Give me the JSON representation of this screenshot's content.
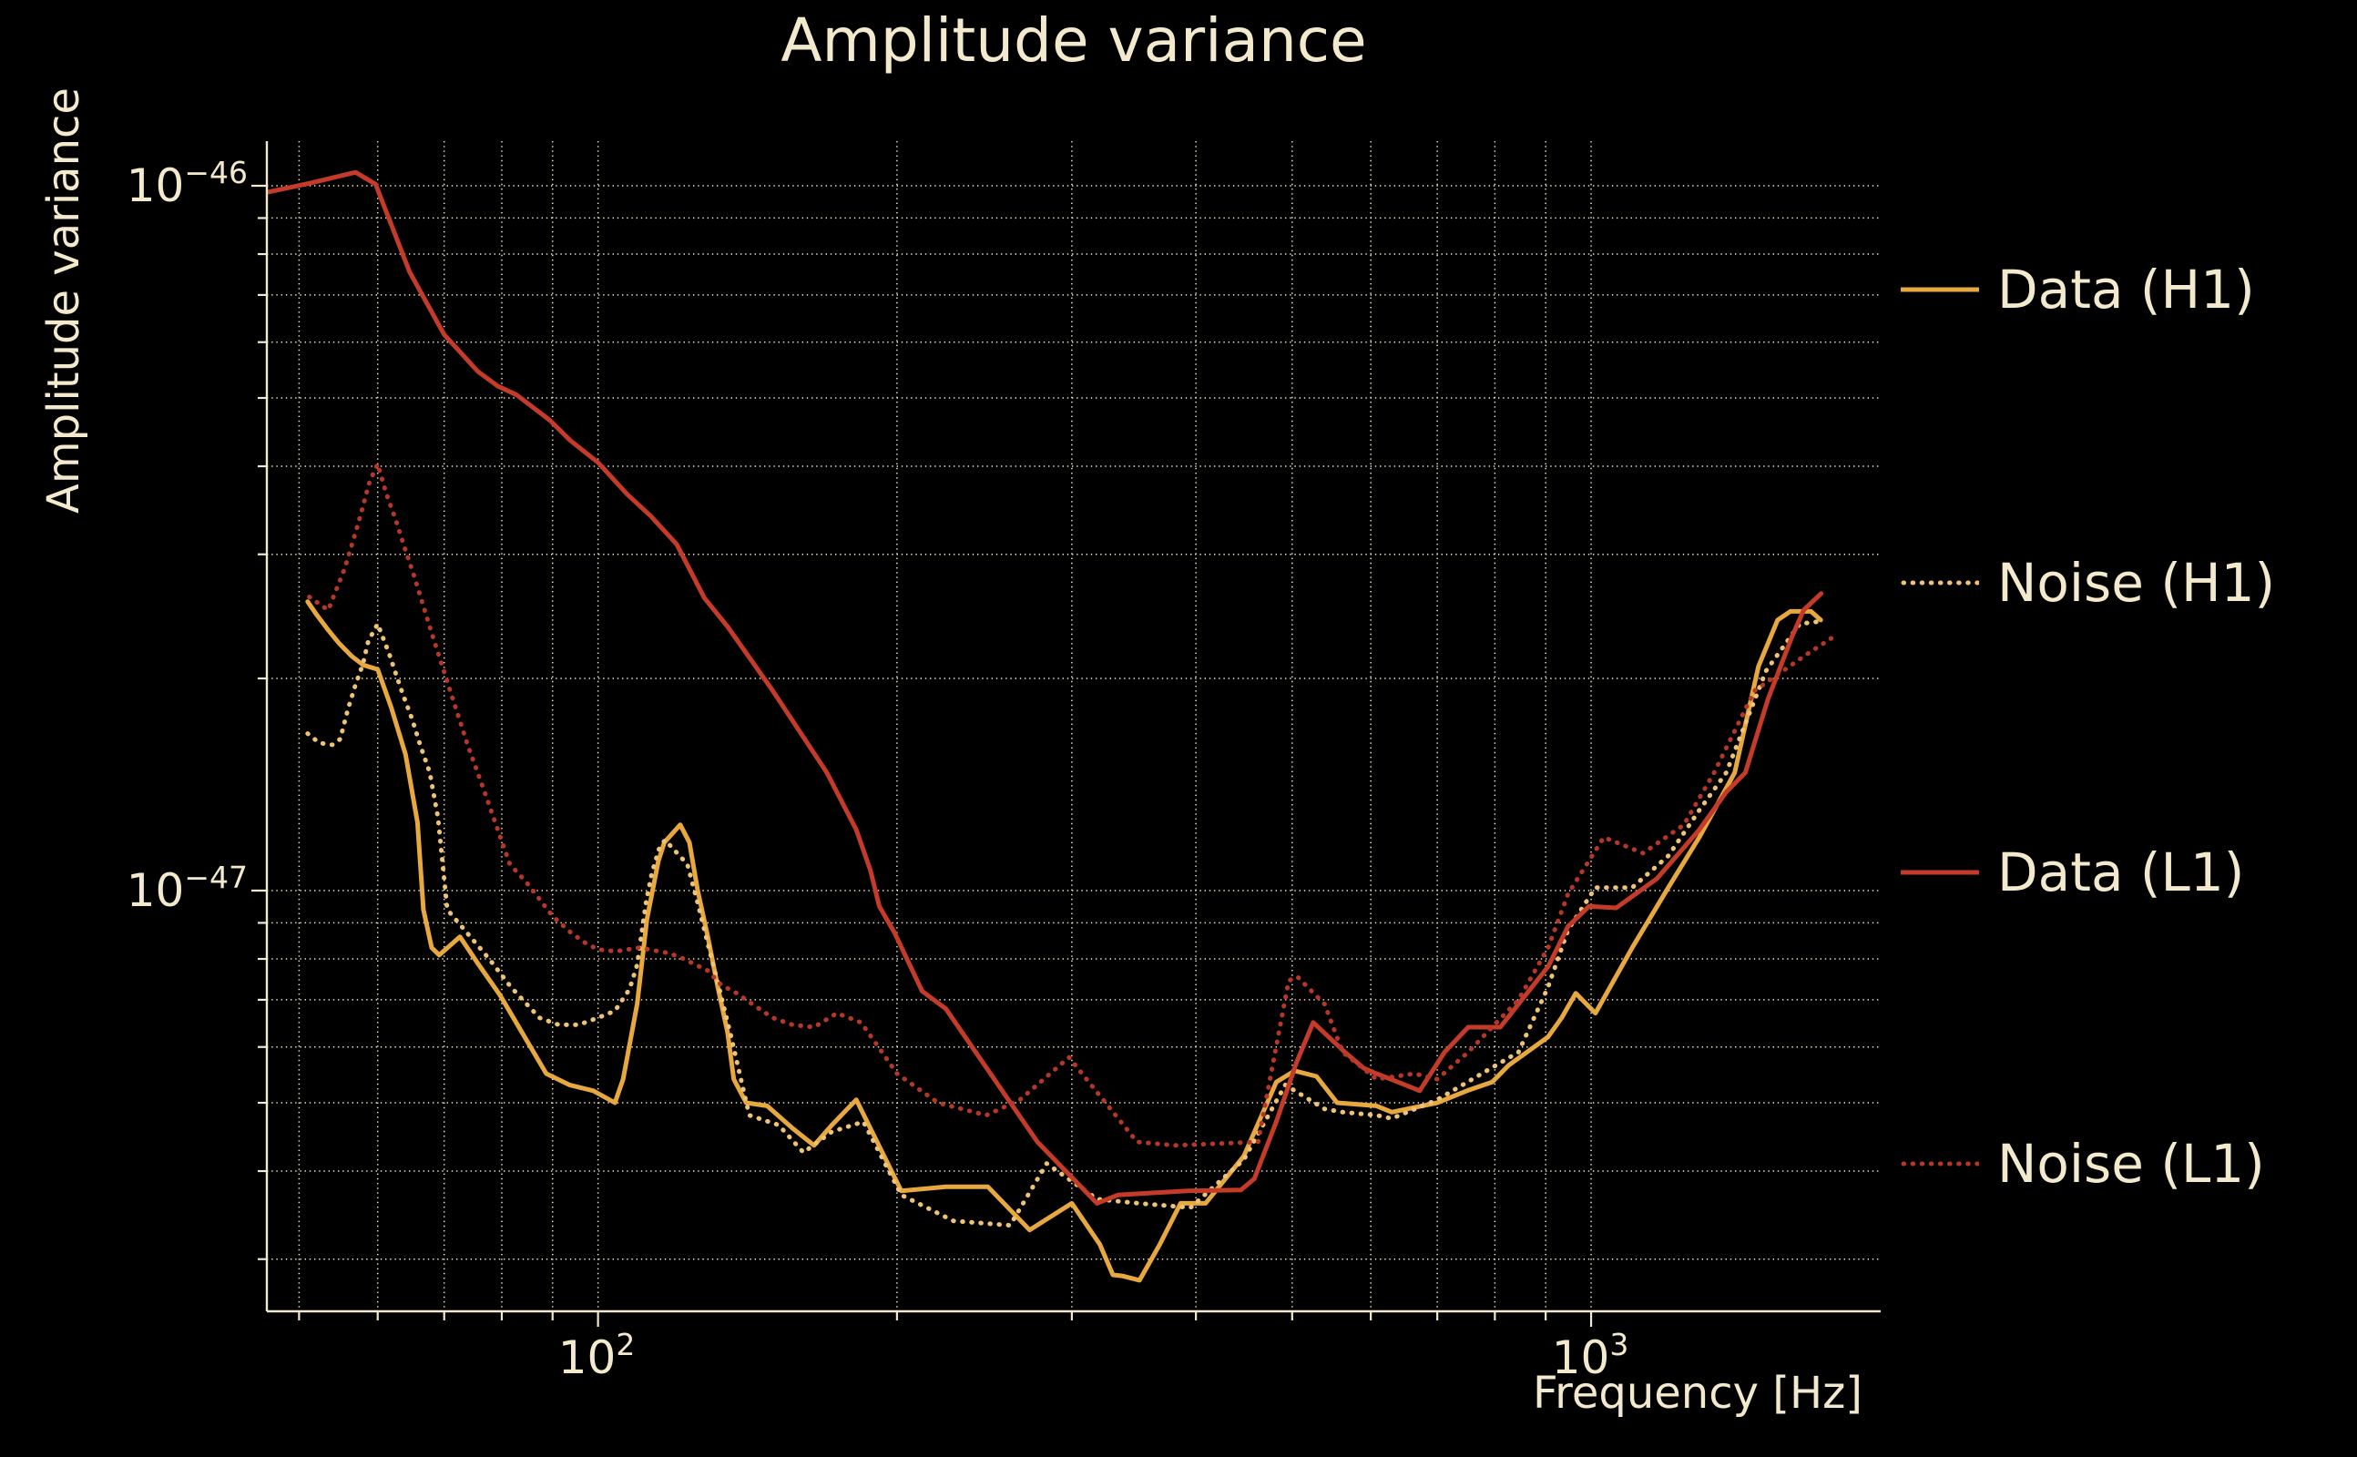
{
  "title": "Amplitude variance",
  "axes": {
    "xlabel": "Frequency [Hz]",
    "ylabel": "Amplitude variance",
    "xscale": "log",
    "yscale": "log",
    "grid": true,
    "xlim": [
      46.4,
      1957
    ],
    "ylim": [
      2.53e-48,
      1.157e-46
    ],
    "x_ticks": [
      {
        "base": "10",
        "exp": "2",
        "value": 100
      },
      {
        "base": "10",
        "exp": "3",
        "value": 1000
      }
    ],
    "y_ticks": [
      {
        "base": "10",
        "exp": "−46",
        "value": 1e-46
      },
      {
        "base": "10",
        "exp": "−47",
        "value": 1e-47
      }
    ]
  },
  "legend": [
    {
      "label": "Data (H1)",
      "color": "#e6a83f",
      "style": "solid"
    },
    {
      "label": "Noise (H1)",
      "color": "#eec377",
      "style": "dotted"
    },
    {
      "label": "Data (L1)",
      "color": "#c43b2a",
      "style": "solid"
    },
    {
      "label": "Noise (L1)",
      "color": "#b53728",
      "style": "dotted"
    }
  ],
  "chart_data": {
    "type": "line",
    "title": "Amplitude variance",
    "xlabel": "Frequency [Hz]",
    "ylabel": "Amplitude variance",
    "x_units": "Hz",
    "legend_position": "right",
    "series": [
      {
        "name": "Data (H1)",
        "color": "#e6a83f",
        "style": "solid",
        "points": [
          [
            51,
            2.57e-47
          ],
          [
            52,
            2.47e-47
          ],
          [
            53.4,
            2.35e-47
          ],
          [
            54.9,
            2.24e-47
          ],
          [
            56.5,
            2.15e-47
          ],
          [
            58,
            2.09e-47
          ],
          [
            60,
            2.06e-47
          ],
          [
            61.9,
            1.82e-47
          ],
          [
            64,
            1.56e-47
          ],
          [
            65.8,
            1.25e-47
          ],
          [
            66.7,
            9.4e-48
          ],
          [
            68,
            8.3e-48
          ],
          [
            69.2,
            8.1e-48
          ],
          [
            72.6,
            8.6e-48
          ],
          [
            75.6,
            7.9e-48
          ],
          [
            79.7,
            7.1e-48
          ],
          [
            83.8,
            6.3e-48
          ],
          [
            88.7,
            5.5e-48
          ],
          [
            93.6,
            5.3e-48
          ],
          [
            98.9,
            5.2e-48
          ],
          [
            104,
            5e-48
          ],
          [
            106,
            5.4e-48
          ],
          [
            109.5,
            6.9e-48
          ],
          [
            112,
            9.1e-48
          ],
          [
            115,
            1.1e-47
          ],
          [
            116.6,
            1.17e-47
          ],
          [
            121,
            1.24e-47
          ],
          [
            123.6,
            1.17e-47
          ],
          [
            126,
            1e-47
          ],
          [
            129,
            8.6e-48
          ],
          [
            132,
            7.3e-48
          ],
          [
            135,
            6.3e-48
          ],
          [
            137,
            5.4e-48
          ],
          [
            141,
            5e-48
          ],
          [
            148,
            4.95e-48
          ],
          [
            157,
            4.6e-48
          ],
          [
            165,
            4.35e-48
          ],
          [
            172,
            4.65e-48
          ],
          [
            182,
            5.05e-48
          ],
          [
            202,
            3.75e-48
          ],
          [
            224,
            3.8e-48
          ],
          [
            247,
            3.8e-48
          ],
          [
            272,
            3.3e-48
          ],
          [
            300,
            3.6e-48
          ],
          [
            320,
            3.15e-48
          ],
          [
            330,
            2.85e-48
          ],
          [
            337,
            2.84e-48
          ],
          [
            351,
            2.8e-48
          ],
          [
            368,
            3.15e-48
          ],
          [
            386,
            3.6e-48
          ],
          [
            409,
            3.6e-48
          ],
          [
            447,
            4.2e-48
          ],
          [
            482,
            5.35e-48
          ],
          [
            503,
            5.55e-48
          ],
          [
            529,
            5.45e-48
          ],
          [
            555,
            5e-48
          ],
          [
            608,
            4.95e-48
          ],
          [
            630,
            4.85e-48
          ],
          [
            700,
            5e-48
          ],
          [
            750,
            5.2e-48
          ],
          [
            795,
            5.35e-48
          ],
          [
            826,
            5.65e-48
          ],
          [
            905,
            6.2e-48
          ],
          [
            934,
            6.6e-48
          ],
          [
            965,
            7.15e-48
          ],
          [
            1010,
            6.7e-48
          ],
          [
            1100,
            8.3e-48
          ],
          [
            1196,
            1.01e-47
          ],
          [
            1285,
            1.19e-47
          ],
          [
            1395,
            1.47e-47
          ],
          [
            1474,
            2.08e-47
          ],
          [
            1541,
            2.42e-47
          ],
          [
            1587,
            2.49e-47
          ],
          [
            1665,
            2.49e-47
          ],
          [
            1703,
            2.42e-47
          ]
        ]
      },
      {
        "name": "Noise (H1)",
        "color": "#eec377",
        "style": "dotted",
        "points": [
          [
            51,
            1.67e-47
          ],
          [
            52.4,
            1.62e-47
          ],
          [
            54,
            1.61e-47
          ],
          [
            55,
            1.64e-47
          ],
          [
            56,
            1.81e-47
          ],
          [
            57,
            1.96e-47
          ],
          [
            58,
            2.1e-47
          ],
          [
            58.7,
            2.26e-47
          ],
          [
            60,
            2.39e-47
          ],
          [
            60.7,
            2.29e-47
          ],
          [
            61.6,
            2.17e-47
          ],
          [
            62.5,
            2.04e-47
          ],
          [
            63.6,
            1.9e-47
          ],
          [
            65,
            1.75e-47
          ],
          [
            66.2,
            1.61e-47
          ],
          [
            67.7,
            1.47e-47
          ],
          [
            69,
            1.27e-47
          ],
          [
            70.5,
            9.4e-48
          ],
          [
            77.7,
            8e-48
          ],
          [
            81.7,
            7.3e-48
          ],
          [
            87.3,
            6.6e-48
          ],
          [
            91.3,
            6.45e-48
          ],
          [
            95.6,
            6.45e-48
          ],
          [
            100,
            6.6e-48
          ],
          [
            104,
            6.75e-48
          ],
          [
            107.6,
            7.25e-48
          ],
          [
            109.5,
            7.85e-48
          ],
          [
            111.8,
            9.65e-48
          ],
          [
            113.3,
            1.06e-47
          ],
          [
            115.2,
            1.145e-47
          ],
          [
            116.8,
            1.18e-47
          ],
          [
            123,
            1.09e-47
          ],
          [
            126,
            9.6e-48
          ],
          [
            129,
            8.4e-48
          ],
          [
            132.5,
            7.25e-48
          ],
          [
            134.7,
            6.6e-48
          ],
          [
            136,
            6.25e-48
          ],
          [
            142,
            4.8e-48
          ],
          [
            152,
            4.65e-48
          ],
          [
            161,
            4.25e-48
          ],
          [
            172,
            4.55e-48
          ],
          [
            185,
            4.7e-48
          ],
          [
            202,
            3.7e-48
          ],
          [
            228,
            3.4e-48
          ],
          [
            260,
            3.35e-48
          ],
          [
            283,
            4.1e-48
          ],
          [
            318,
            3.65e-48
          ],
          [
            350,
            3.6e-48
          ],
          [
            395,
            3.55e-48
          ],
          [
            447,
            4.15e-48
          ],
          [
            492,
            5.3e-48
          ],
          [
            539,
            4.9e-48
          ],
          [
            562,
            4.85e-48
          ],
          [
            608,
            4.8e-48
          ],
          [
            630,
            4.75e-48
          ],
          [
            700,
            5.05e-48
          ],
          [
            845,
            5.9e-48
          ],
          [
            905,
            7.3e-48
          ],
          [
            948,
            8.8e-48
          ],
          [
            1010,
            1.01e-47
          ],
          [
            1100,
            1.01e-47
          ],
          [
            1196,
            1.12e-47
          ],
          [
            1285,
            1.3e-47
          ],
          [
            1368,
            1.47e-47
          ],
          [
            1500,
            2.05e-47
          ],
          [
            1622,
            2.39e-47
          ],
          [
            1703,
            2.41e-47
          ]
        ]
      },
      {
        "name": "Data (L1)",
        "color": "#c43b2a",
        "style": "solid",
        "points": [
          [
            46.6,
            9.8e-47
          ],
          [
            51.5,
            1.01e-46
          ],
          [
            57,
            1.045e-46
          ],
          [
            59.7,
            1.005e-46
          ],
          [
            64.6,
            7.55e-47
          ],
          [
            70,
            6.15e-47
          ],
          [
            75.7,
            5.45e-47
          ],
          [
            79.2,
            5.2e-47
          ],
          [
            82.8,
            5.05e-47
          ],
          [
            89.4,
            4.65e-47
          ],
          [
            93.8,
            4.35e-47
          ],
          [
            100,
            4.05e-47
          ],
          [
            107,
            3.65e-47
          ],
          [
            113,
            3.4e-47
          ],
          [
            120,
            3.1e-47
          ],
          [
            128,
            2.6e-47
          ],
          [
            135,
            2.37e-47
          ],
          [
            150,
            1.92e-47
          ],
          [
            170,
            1.47e-47
          ],
          [
            182,
            1.22e-47
          ],
          [
            188,
            1.07e-47
          ],
          [
            192,
            9.5e-48
          ],
          [
            199,
            8.7e-48
          ],
          [
            212,
            7.2e-48
          ],
          [
            224,
            6.8e-48
          ],
          [
            277,
            4.4e-48
          ],
          [
            318,
            3.6e-48
          ],
          [
            334,
            3.7e-48
          ],
          [
            392,
            3.75e-48
          ],
          [
            444,
            3.76e-48
          ],
          [
            458,
            3.9e-48
          ],
          [
            482,
            4.7e-48
          ],
          [
            505,
            5.7e-48
          ],
          [
            525,
            6.5e-48
          ],
          [
            565,
            5.9e-48
          ],
          [
            590,
            5.6e-48
          ],
          [
            608,
            5.5e-48
          ],
          [
            650,
            5.3e-48
          ],
          [
            672,
            5.2e-48
          ],
          [
            712,
            5.9e-48
          ],
          [
            752,
            6.4e-48
          ],
          [
            810,
            6.4e-48
          ],
          [
            905,
            7.8e-48
          ],
          [
            948,
            8.9e-48
          ],
          [
            995,
            9.5e-48
          ],
          [
            1060,
            9.45e-48
          ],
          [
            1165,
            1.04e-47
          ],
          [
            1285,
            1.22e-47
          ],
          [
            1368,
            1.38e-47
          ],
          [
            1430,
            1.47e-47
          ],
          [
            1507,
            1.87e-47
          ],
          [
            1593,
            2.29e-47
          ],
          [
            1637,
            2.5e-47
          ],
          [
            1705,
            2.64e-47
          ]
        ]
      },
      {
        "name": "Noise (L1)",
        "color": "#b53728",
        "style": "dotted",
        "points": [
          [
            51.2,
            2.61e-47
          ],
          [
            53.5,
            2.5e-47
          ],
          [
            55.6,
            2.87e-47
          ],
          [
            57.4,
            3.33e-47
          ],
          [
            58.9,
            3.81e-47
          ],
          [
            60,
            4.03e-47
          ],
          [
            61.2,
            3.66e-47
          ],
          [
            62.5,
            3.37e-47
          ],
          [
            63.8,
            3.08e-47
          ],
          [
            65.2,
            2.81e-47
          ],
          [
            68,
            2.32e-47
          ],
          [
            70.9,
            1.93e-47
          ],
          [
            73.9,
            1.61e-47
          ],
          [
            76.6,
            1.4e-47
          ],
          [
            81.5,
            1.09e-47
          ],
          [
            84.6,
            1.03e-47
          ],
          [
            90,
            9.2e-48
          ],
          [
            93.6,
            8.75e-48
          ],
          [
            96.8,
            8.45e-48
          ],
          [
            100,
            8.25e-48
          ],
          [
            104.3,
            8.2e-48
          ],
          [
            110,
            8.3e-48
          ],
          [
            118,
            8.15e-48
          ],
          [
            122,
            8e-48
          ],
          [
            129,
            7.7e-48
          ],
          [
            133,
            7.35e-48
          ],
          [
            138,
            7.15e-48
          ],
          [
            143,
            6.9e-48
          ],
          [
            150,
            6.6e-48
          ],
          [
            157,
            6.45e-48
          ],
          [
            165,
            6.4e-48
          ],
          [
            174,
            6.7e-48
          ],
          [
            184,
            6.5e-48
          ],
          [
            190,
            6.1e-48
          ],
          [
            200,
            5.5e-48
          ],
          [
            220,
            5e-48
          ],
          [
            246,
            4.8e-48
          ],
          [
            266,
            5.05e-48
          ],
          [
            298,
            5.8e-48
          ],
          [
            349,
            4.4e-48
          ],
          [
            381,
            4.35e-48
          ],
          [
            462,
            4.4e-48
          ],
          [
            496,
            7.45e-48
          ],
          [
            506,
            7.55e-48
          ],
          [
            539,
            6.9e-48
          ],
          [
            562,
            5.9e-48
          ],
          [
            608,
            5.4e-48
          ],
          [
            664,
            5.5e-48
          ],
          [
            700,
            5.4e-48
          ],
          [
            752,
            5.9e-48
          ],
          [
            845,
            7e-48
          ],
          [
            905,
            8.3e-48
          ],
          [
            948,
            9.9e-48
          ],
          [
            1030,
            1.19e-47
          ],
          [
            1128,
            1.13e-47
          ],
          [
            1240,
            1.24e-47
          ],
          [
            1330,
            1.47e-47
          ],
          [
            1460,
            1.92e-47
          ],
          [
            1645,
            2.16e-47
          ],
          [
            1745,
            2.28e-47
          ]
        ]
      }
    ]
  }
}
